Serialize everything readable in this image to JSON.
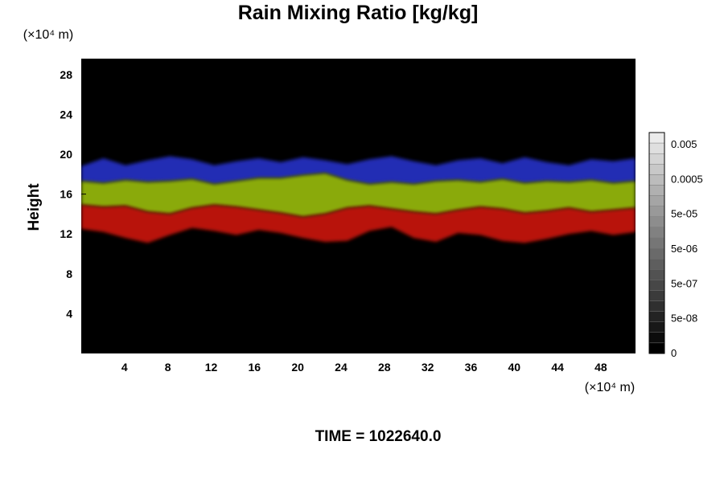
{
  "chart_data": {
    "type": "heatmap",
    "title": "Rain Mixing Ratio [kg/kg]",
    "subtitle": "TIME = 1022640.0",
    "ylabel": "Height",
    "x_unit": "(×10⁴ m)",
    "y_unit": "(×10⁴ m)",
    "xlim": [
      0,
      51.2
    ],
    "ylim": [
      0,
      29.6
    ],
    "x_ticks": [
      4,
      8,
      12,
      16,
      20,
      24,
      28,
      32,
      36,
      40,
      44,
      48
    ],
    "y_ticks": [
      4,
      8,
      12,
      16,
      20,
      24,
      28
    ],
    "background_color": "#000000",
    "colorbar": {
      "labels": [
        "0.005",
        "0.0005",
        "5e-05",
        "5e-06",
        "5e-07",
        "5e-08",
        "0"
      ]
    },
    "layers": [
      {
        "color": "#2832c8",
        "top": [
          18.8,
          19.6,
          18.9,
          19.4,
          19.8,
          19.5,
          18.9,
          19.3,
          19.6,
          19.2,
          19.7,
          19.4,
          19.0,
          19.5,
          19.8,
          19.3,
          18.9,
          19.4,
          19.6,
          19.1,
          19.7,
          19.2,
          18.9,
          19.5,
          19.3,
          19.6
        ],
        "bottom": [
          17.3,
          17.1,
          17.4,
          17.2,
          17.3,
          17.5,
          17.0,
          17.3,
          17.6,
          17.6,
          17.9,
          18.1,
          17.4,
          17.0,
          17.2,
          17.0,
          17.3,
          17.4,
          17.2,
          17.5,
          17.1,
          17.3,
          17.2,
          17.4,
          17.1,
          17.3
        ]
      },
      {
        "color": "#9abd0a",
        "top": [
          17.3,
          17.1,
          17.4,
          17.2,
          17.3,
          17.5,
          17.0,
          17.3,
          17.6,
          17.6,
          17.9,
          18.1,
          17.4,
          17.0,
          17.2,
          17.0,
          17.3,
          17.4,
          17.2,
          17.5,
          17.1,
          17.3,
          17.2,
          17.4,
          17.1,
          17.3
        ],
        "bottom": [
          14.9,
          14.7,
          14.8,
          14.2,
          14.0,
          14.6,
          14.9,
          14.7,
          14.4,
          14.1,
          13.7,
          14.0,
          14.6,
          14.8,
          14.5,
          14.2,
          14.0,
          14.4,
          14.7,
          14.5,
          14.1,
          14.3,
          14.6,
          14.2,
          14.4,
          14.6
        ]
      },
      {
        "color": "#cd1508",
        "top": [
          14.9,
          14.7,
          14.8,
          14.2,
          14.0,
          14.6,
          14.9,
          14.7,
          14.4,
          14.1,
          13.7,
          14.0,
          14.6,
          14.8,
          14.5,
          14.2,
          14.0,
          14.4,
          14.7,
          14.5,
          14.1,
          14.3,
          14.6,
          14.2,
          14.4,
          14.6
        ],
        "bottom": [
          12.5,
          12.2,
          11.6,
          11.1,
          11.9,
          12.6,
          12.3,
          11.9,
          12.4,
          12.1,
          11.6,
          11.2,
          11.3,
          12.3,
          12.7,
          11.6,
          11.2,
          12.1,
          11.9,
          11.3,
          11.1,
          11.5,
          12.0,
          12.3,
          11.9,
          12.2
        ]
      }
    ]
  }
}
